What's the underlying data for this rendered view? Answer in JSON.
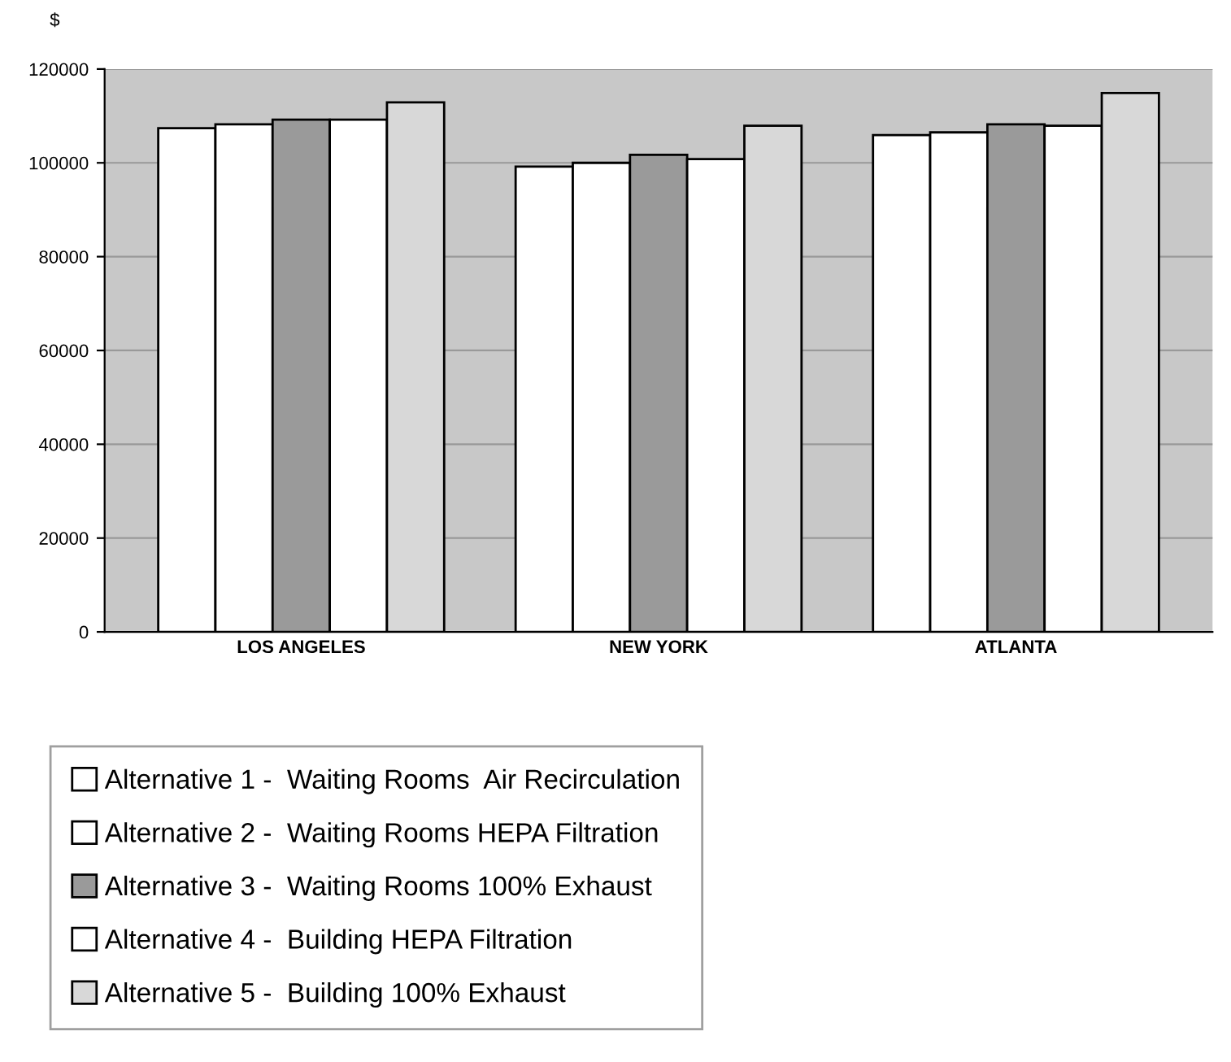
{
  "chart_data": {
    "type": "bar",
    "ylabel": "$",
    "categories": [
      "LOS ANGELES",
      "NEW YORK",
      "ATLANTA"
    ],
    "series": [
      {
        "name": "Alternative 1 -  Waiting Rooms  Air Recirculation",
        "color": "#ffffff",
        "values": [
          107400,
          99200,
          105900
        ]
      },
      {
        "name": "Alternative 2 -  Waiting Rooms HEPA Filtration",
        "color": "#ffffff",
        "values": [
          108200,
          100000,
          106500
        ]
      },
      {
        "name": "Alternative 3 -  Waiting Rooms 100% Exhaust",
        "color": "#9a9a9a",
        "values": [
          109200,
          101700,
          108200
        ]
      },
      {
        "name": "Alternative 4 -  Building HEPA Filtration",
        "color": "#ffffff",
        "values": [
          109200,
          100800,
          107900
        ]
      },
      {
        "name": "Alternative 5 -  Building 100% Exhaust",
        "color": "#d8d8d8",
        "values": [
          112900,
          107900,
          114900
        ]
      }
    ],
    "ylim": [
      0,
      120000
    ],
    "yticks": [
      0,
      20000,
      40000,
      60000,
      80000,
      100000,
      120000
    ],
    "grid": "y",
    "legend": "bottom"
  }
}
